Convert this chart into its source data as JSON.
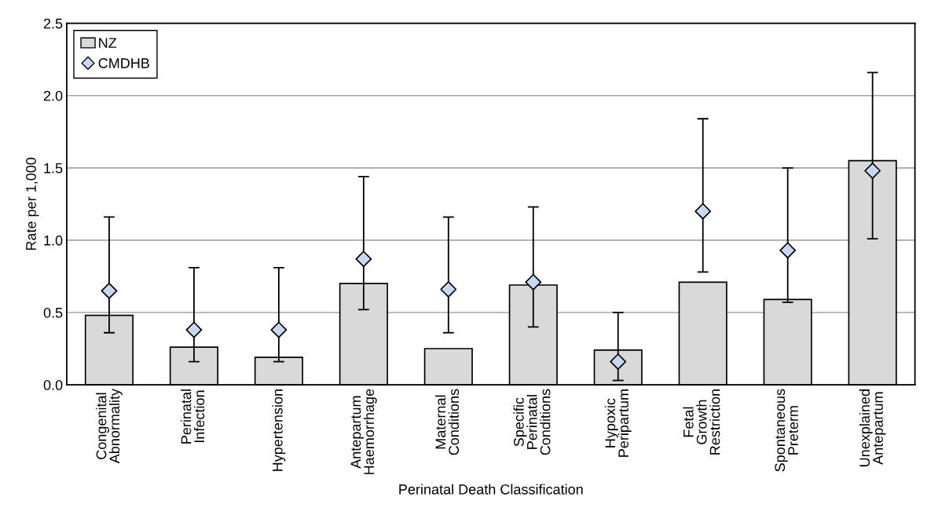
{
  "chart_data": {
    "type": "bar",
    "xlabel": "Perinatal Death Classification",
    "ylabel": "Rate per 1,000",
    "categories": [
      "Congenital\nAbnormality",
      "Perinatal\nInfection",
      "Hypertension",
      "Antepartum\nHaemorrhage",
      "Maternal\nConditions",
      "Specific\nPerinatal\nConditions",
      "Hypoxic\nPeripartum",
      "Fetal\nGrowth\nRestriction",
      "Spontaneous\nPreterm",
      "Unexplained\nAntepartum"
    ],
    "series": [
      {
        "name": "NZ",
        "color": "#d9d9d9",
        "values": [
          0.48,
          0.26,
          0.19,
          0.7,
          0.25,
          0.69,
          0.24,
          0.71,
          0.59,
          1.55
        ]
      },
      {
        "name": "CMDHB",
        "type": "scatter",
        "color": "#c6d9f1",
        "marker": "diamond",
        "values": [
          0.65,
          0.38,
          0.38,
          0.87,
          0.66,
          0.71,
          0.16,
          1.2,
          0.93,
          1.48
        ],
        "errors": [
          [
            0.36,
            1.16
          ],
          [
            0.16,
            0.81
          ],
          [
            0.16,
            0.81
          ],
          [
            0.52,
            1.44
          ],
          [
            0.36,
            1.16
          ],
          [
            0.4,
            1.23
          ],
          [
            0.03,
            0.5
          ],
          [
            0.78,
            1.84
          ],
          [
            0.57,
            1.5
          ],
          [
            1.01,
            2.16
          ]
        ]
      }
    ],
    "ylim": [
      0,
      2.5
    ],
    "yticks": [
      {
        "value": 0,
        "label": "0.0"
      },
      {
        "value": 0.5,
        "label": "0.5"
      },
      {
        "value": 1,
        "label": "1.0"
      },
      {
        "value": 1.5,
        "label": "1.5"
      },
      {
        "value": 2,
        "label": "2.0"
      },
      {
        "value": 2.5,
        "label": "2.5"
      }
    ],
    "grid": "y",
    "legend": "top left"
  }
}
